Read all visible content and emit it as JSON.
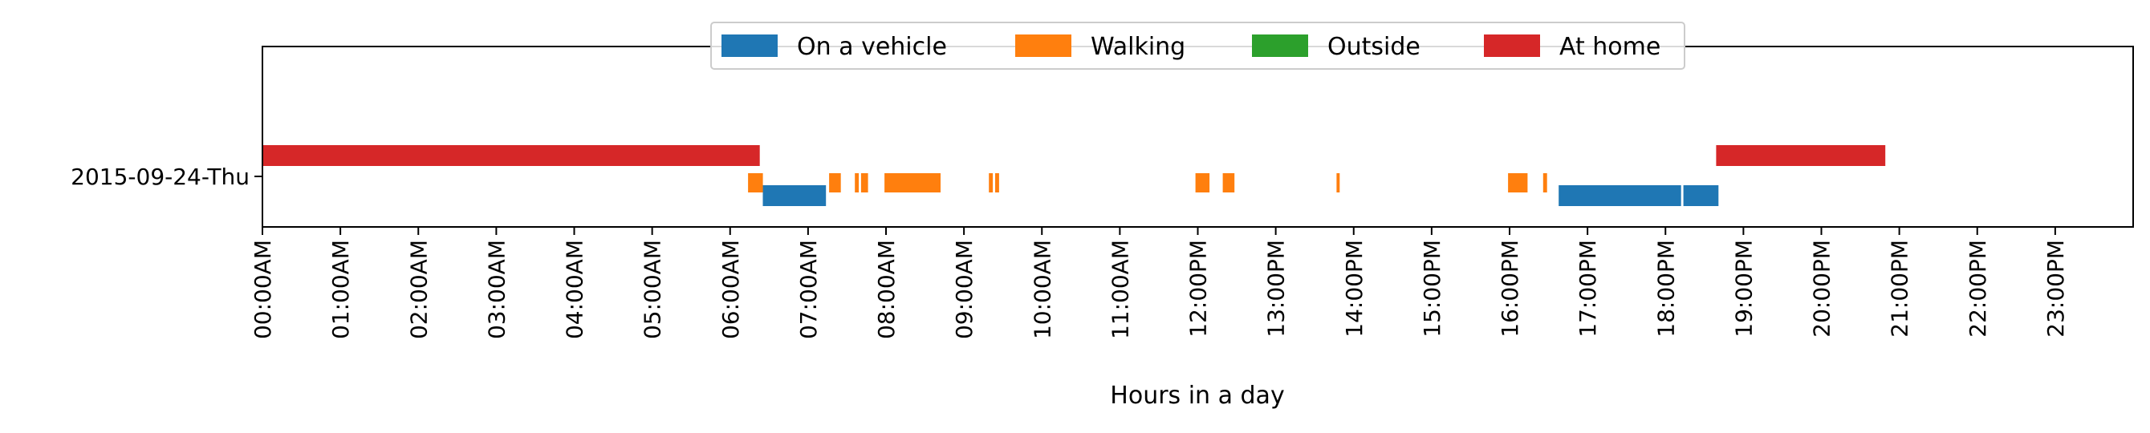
{
  "chart_data": {
    "type": "timeline",
    "xlabel": "Hours in a day",
    "xlim": [
      0,
      24
    ],
    "x_ticks": [
      "00:00AM",
      "01:00AM",
      "02:00AM",
      "03:00AM",
      "04:00AM",
      "05:00AM",
      "06:00AM",
      "07:00AM",
      "08:00AM",
      "09:00AM",
      "10:00AM",
      "11:00AM",
      "12:00PM",
      "13:00PM",
      "14:00PM",
      "15:00PM",
      "16:00PM",
      "17:00PM",
      "18:00PM",
      "19:00PM",
      "20:00PM",
      "21:00PM",
      "22:00PM",
      "23:00PM"
    ],
    "y_categories": [
      "2015-09-24-Thu"
    ],
    "grid": false,
    "legend_placement": "top-center",
    "series": [
      {
        "name": "On a vehicle",
        "color": "#1f77b4",
        "intervals": [
          [
            6.42,
            7.23
          ],
          [
            16.63,
            18.2
          ],
          [
            18.23,
            18.68
          ]
        ]
      },
      {
        "name": "Walking",
        "color": "#ff7f0e",
        "intervals": [
          [
            6.23,
            6.42
          ],
          [
            7.27,
            7.42
          ],
          [
            7.6,
            7.65
          ],
          [
            7.68,
            7.77
          ],
          [
            7.98,
            8.7
          ],
          [
            9.32,
            9.37
          ],
          [
            9.4,
            9.45
          ],
          [
            11.97,
            12.15
          ],
          [
            12.32,
            12.47
          ],
          [
            13.78,
            13.82
          ],
          [
            15.98,
            16.23
          ],
          [
            16.43,
            16.48
          ]
        ]
      },
      {
        "name": "Outside",
        "color": "#2ca02c",
        "intervals": []
      },
      {
        "name": "At home",
        "color": "#d62728",
        "intervals": [
          [
            0,
            6.38
          ],
          [
            18.65,
            20.82
          ]
        ]
      }
    ]
  }
}
